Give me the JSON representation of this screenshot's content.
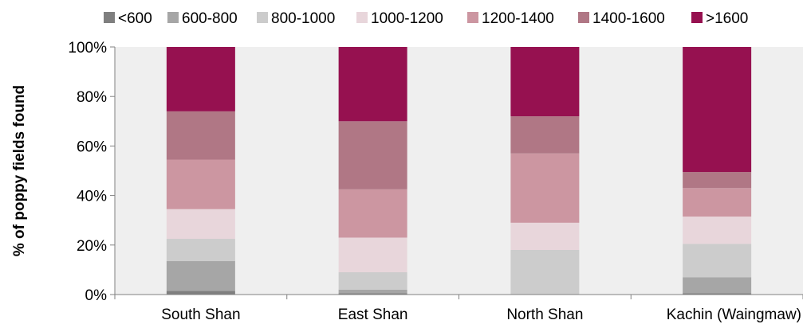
{
  "chart_data": {
    "type": "bar",
    "stacked": true,
    "normalized": true,
    "title": "",
    "xlabel": "",
    "ylabel": "% of poppy fields found",
    "ylim": [
      0,
      100
    ],
    "yticks": [
      "0%",
      "20%",
      "40%",
      "60%",
      "80%",
      "100%"
    ],
    "categories": [
      "South Shan",
      "East Shan",
      "North Shan",
      "Kachin (Waingmaw)"
    ],
    "legend_position": "top",
    "grid": false,
    "plot_background": "#efefef",
    "series": [
      {
        "name": "<600",
        "color": "#7f7f7f",
        "values": [
          1.5,
          0.5,
          0,
          0.5
        ]
      },
      {
        "name": "600-800",
        "color": "#a6a6a6",
        "values": [
          12,
          1.5,
          0,
          6.5
        ]
      },
      {
        "name": "800-1000",
        "color": "#cccccc",
        "values": [
          9,
          7,
          18,
          13.5
        ]
      },
      {
        "name": "1000-1200",
        "color": "#e8d6db",
        "values": [
          12,
          14,
          11,
          11
        ]
      },
      {
        "name": "1200-1400",
        "color": "#cc96a1",
        "values": [
          20,
          19.5,
          28,
          11.5
        ]
      },
      {
        "name": "1400-1600",
        "color": "#b07785",
        "values": [
          19.5,
          27.5,
          15,
          6.5
        ]
      },
      {
        "name": ">1600",
        "color": "#961150",
        "values": [
          26,
          30,
          28,
          50.5
        ]
      }
    ]
  }
}
